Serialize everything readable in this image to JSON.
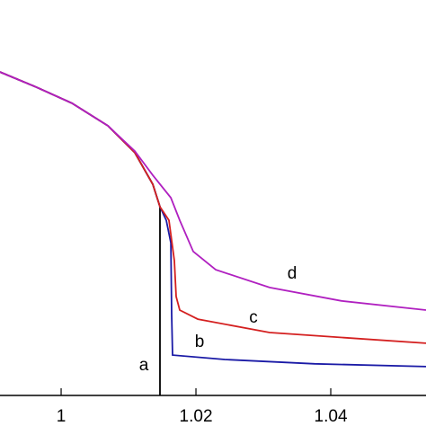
{
  "chart_data": {
    "type": "line",
    "xlim": [
      0.99093,
      1.05413
    ],
    "ylim": [
      0,
      1
    ],
    "xticks": [
      1,
      1.02,
      1.04
    ],
    "series": [
      {
        "name": "a",
        "color": "#000000",
        "x": [
          0.99093,
          0.99627,
          1.0016,
          1.00693,
          1.01093,
          1.0136,
          1.01467,
          1.01467
        ],
        "values": [
          0.818,
          0.78,
          0.739,
          0.682,
          0.614,
          0.534,
          0.477,
          0
        ]
      },
      {
        "name": "b",
        "color": "#1a1aa6",
        "x": [
          0.99093,
          0.99627,
          1.0016,
          1.00693,
          1.01093,
          1.0136,
          1.01467,
          1.0156,
          1.01627,
          1.0164,
          1.01653,
          1.02427,
          1.0376,
          1.05413
        ],
        "values": [
          0.818,
          0.78,
          0.739,
          0.682,
          0.614,
          0.534,
          0.477,
          0.443,
          0.386,
          0.205,
          0.102,
          0.091,
          0.08,
          0.073
        ]
      },
      {
        "name": "c",
        "color": "#d42020",
        "x": [
          0.99093,
          0.99627,
          1.0016,
          1.00693,
          1.01093,
          1.0136,
          1.01467,
          1.016,
          1.0168,
          1.01707,
          1.0176,
          1.02027,
          1.03093,
          1.05413
        ],
        "values": [
          0.818,
          0.78,
          0.739,
          0.682,
          0.614,
          0.534,
          0.477,
          0.443,
          0.341,
          0.25,
          0.216,
          0.193,
          0.159,
          0.132
        ]
      },
      {
        "name": "d",
        "color": "#b020c0",
        "x": [
          0.99093,
          0.99627,
          1.0016,
          1.00693,
          1.01093,
          1.0136,
          1.01627,
          1.0176,
          1.0196,
          1.02293,
          1.03093,
          1.0416,
          1.05413
        ],
        "values": [
          0.818,
          0.78,
          0.739,
          0.682,
          0.618,
          0.557,
          0.5,
          0.443,
          0.364,
          0.318,
          0.273,
          0.239,
          0.216
        ]
      }
    ]
  }
}
